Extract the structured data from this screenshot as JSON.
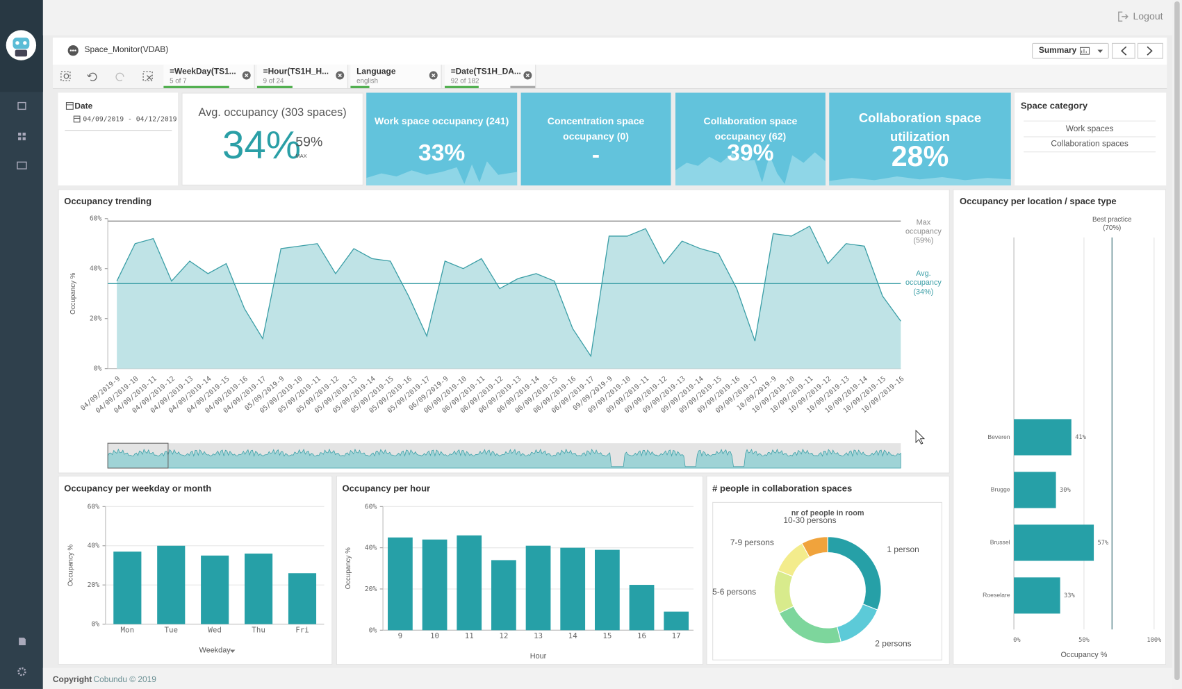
{
  "topbar": {
    "logout": "Logout"
  },
  "sheet": {
    "title": "Space_Monitor(VDAB)",
    "summary": "Summary"
  },
  "filters": [
    {
      "name": "=WeekDay(TS1...",
      "state": "5 of 7"
    },
    {
      "name": "=Hour(TS1H_H...",
      "state": "9 of 24"
    },
    {
      "name": "Language",
      "state": "english"
    },
    {
      "name": "=Date(TS1H_DA...",
      "state": "92 of 182"
    }
  ],
  "date_panel": {
    "title": "Date",
    "range": "04/09/2019 - 04/12/2019"
  },
  "kpi": {
    "title": "Avg. occupancy (303 spaces)",
    "value": "34%",
    "max": "59%",
    "max_label": "MAX"
  },
  "tiles": [
    {
      "title": "Work space occupancy (241)",
      "value": "33%"
    },
    {
      "title": "Concentration space occupancy (0)",
      "value": "-"
    },
    {
      "title": "Collaboration space occupancy (62)",
      "value": "39%"
    },
    {
      "title": "Collaboration space utilization",
      "value": "28%"
    }
  ],
  "space_category": {
    "title": "Space category",
    "items": [
      "Work spaces",
      "Collaboration spaces"
    ]
  },
  "footer": {
    "bold": "Copyright",
    "text": "Cobundu © 2019"
  },
  "chart_data": [
    {
      "type": "area",
      "title": "Occupancy trending",
      "y_label": "Occupancy %",
      "categories": [
        "04/09/2019-9",
        "04/09/2019-10",
        "04/09/2019-11",
        "04/09/2019-12",
        "04/09/2019-13",
        "04/09/2019-14",
        "04/09/2019-15",
        "04/09/2019-16",
        "04/09/2019-17",
        "05/09/2019-9",
        "05/09/2019-10",
        "05/09/2019-11",
        "05/09/2019-12",
        "05/09/2019-13",
        "05/09/2019-14",
        "05/09/2019-15",
        "05/09/2019-16",
        "05/09/2019-17",
        "06/09/2019-9",
        "06/09/2019-10",
        "06/09/2019-11",
        "06/09/2019-12",
        "06/09/2019-13",
        "06/09/2019-14",
        "06/09/2019-15",
        "06/09/2019-16",
        "06/09/2019-17",
        "09/09/2019-9",
        "09/09/2019-10",
        "09/09/2019-11",
        "09/09/2019-12",
        "09/09/2019-13",
        "09/09/2019-14",
        "09/09/2019-15",
        "09/09/2019-16",
        "09/09/2019-17",
        "10/09/2019-9",
        "10/09/2019-10",
        "10/09/2019-11",
        "10/09/2019-12",
        "10/09/2019-13",
        "10/09/2019-14",
        "10/09/2019-15",
        "10/09/2019-16"
      ],
      "values": [
        35,
        50,
        52,
        35,
        43,
        38,
        42,
        24,
        12,
        48,
        49,
        50,
        38,
        48,
        44,
        43,
        29,
        13,
        43,
        40,
        44,
        32,
        36,
        38,
        35,
        16,
        5,
        53,
        53,
        56,
        42,
        51,
        48,
        46,
        32,
        11,
        54,
        53,
        57,
        42,
        50,
        49,
        29,
        19
      ],
      "color": "#bfe3e6",
      "line_color": "#3a9ea6",
      "ylim": [
        0,
        60
      ],
      "yticks": [
        {
          "value": 0,
          "label": "0%"
        },
        {
          "value": 20,
          "label": "20%"
        },
        {
          "value": 40,
          "label": "40%"
        },
        {
          "value": 60,
          "label": "60%"
        }
      ],
      "grid": false,
      "reference_lines": [
        {
          "label": "Max occupancy (59%)",
          "value": 59,
          "color": "#8a8a8a"
        },
        {
          "label": "Avg. occupancy (34%)",
          "value": 34,
          "color": "#3a9ea6"
        }
      ]
    },
    {
      "type": "bar",
      "title": "Occupancy per weekday or month",
      "y_label": "Occupancy %",
      "x_label": "Weekday",
      "categories": [
        "Mon",
        "Tue",
        "Wed",
        "Thu",
        "Fri"
      ],
      "values": [
        37,
        40,
        35,
        36,
        26
      ],
      "color": "#26a0a7",
      "ylim": [
        0,
        60
      ],
      "yticks": [
        {
          "value": 0,
          "label": "0%"
        },
        {
          "value": 20,
          "label": "20%"
        },
        {
          "value": 40,
          "label": "40%"
        },
        {
          "value": 60,
          "label": "60%"
        }
      ],
      "grid": true
    },
    {
      "type": "bar",
      "title": "Occupancy per hour",
      "y_label": "Occupancy %",
      "x_label": "Hour",
      "categories": [
        "9",
        "10",
        "11",
        "12",
        "13",
        "14",
        "15",
        "16",
        "17"
      ],
      "values": [
        45,
        44,
        46,
        34,
        41,
        40,
        39,
        22,
        9
      ],
      "color": "#26a0a7",
      "ylim": [
        0,
        60
      ],
      "yticks": [
        {
          "value": 0,
          "label": "0%"
        },
        {
          "value": 20,
          "label": "20%"
        },
        {
          "value": 40,
          "label": "40%"
        },
        {
          "value": 60,
          "label": "60%"
        }
      ],
      "grid": true
    },
    {
      "type": "pie",
      "donut": true,
      "title": "# people in collaboration spaces",
      "subtitle": "nr of people in room",
      "categories": [
        "1 person",
        "2 persons",
        null,
        "5-6 persons",
        "7-9 persons",
        "10-30 persons"
      ],
      "values": [
        31,
        15,
        22,
        13,
        11,
        8
      ],
      "colors": [
        "#26a0a7",
        "#5ccad8",
        "#7dd69c",
        "#d8eb8c",
        "#f3ec8c",
        "#f0a33c"
      ]
    },
    {
      "type": "barh",
      "title": "Occupancy per location / space type",
      "x_label": "Occupancy %",
      "categories": [
        "Beveren",
        "Brugge",
        "Brussel",
        "Roeselare"
      ],
      "values": [
        41,
        30,
        57,
        33
      ],
      "value_labels": [
        "41%",
        "30%",
        "57%",
        "33%"
      ],
      "color": "#26a0a7",
      "xlim": [
        0,
        100
      ],
      "xticks": [
        {
          "value": 0,
          "label": "0%"
        },
        {
          "value": 50,
          "label": "50%"
        },
        {
          "value": 100,
          "label": "100%"
        }
      ],
      "grid": true,
      "reference_lines": [
        {
          "label": "Best practice (70%)",
          "value": 70,
          "color": "#4f7e84"
        }
      ]
    }
  ]
}
